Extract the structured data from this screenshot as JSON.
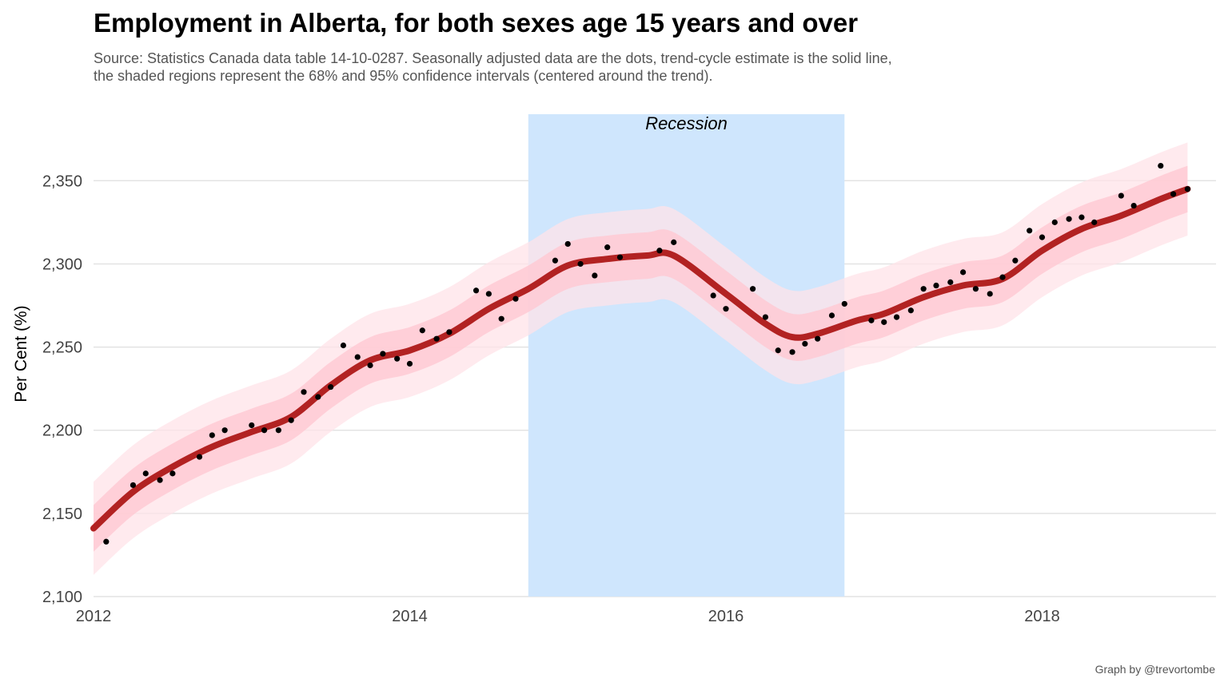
{
  "title": "Employment in Alberta, for both sexes age 15 years and over",
  "subtitle_line1": "Source: Statistics Canada data table 14-10-0287. Seasonally adjusted data are the dots, trend-cycle estimate is the solid line,",
  "subtitle_line2": "the shaded regions represent the 68% and 95% confidence intervals (centered around the trend).",
  "caption": "Graph by @trevortombe",
  "chart_data": {
    "type": "line",
    "ylabel": "Per Cent (%)",
    "xlabel": "",
    "xlim": [
      2012.0,
      2019.1
    ],
    "ylim": [
      2100,
      2390
    ],
    "x_ticks": [
      2012,
      2014,
      2016,
      2018
    ],
    "x_tick_labels": [
      "2012",
      "2014",
      "2016",
      "2018"
    ],
    "y_ticks": [
      2100,
      2150,
      2200,
      2250,
      2300,
      2350
    ],
    "y_tick_labels": [
      "2,100",
      "2,150",
      "2,200",
      "2,250",
      "2,300",
      "2,350"
    ],
    "grid": true,
    "annotation": {
      "text": "Recession",
      "x_start": 2014.75,
      "x_end": 2016.75
    },
    "colors": {
      "trend": "#b22222",
      "ci68": "#ffc8d2",
      "ci95": "#ffe3e8",
      "recession": "#cfe6fd",
      "dots": "#000000"
    },
    "ci68_halfwidth": 14,
    "ci95_halfwidth": 28,
    "trend": {
      "name": "trend-cycle estimate",
      "x": [
        2012.0,
        2012.25,
        2012.5,
        2012.75,
        2013.0,
        2013.25,
        2013.5,
        2013.75,
        2014.0,
        2014.25,
        2014.5,
        2014.75,
        2015.0,
        2015.25,
        2015.5,
        2015.67,
        2016.0,
        2016.25,
        2016.42,
        2016.58,
        2016.83,
        2017.0,
        2017.25,
        2017.5,
        2017.75,
        2018.0,
        2018.25,
        2018.5,
        2018.75,
        2018.92
      ],
      "y": [
        2141,
        2163,
        2178,
        2190,
        2199,
        2208,
        2227,
        2242,
        2248,
        2258,
        2273,
        2285,
        2299,
        2303,
        2305,
        2305,
        2282,
        2264,
        2256,
        2258,
        2266,
        2270,
        2280,
        2287,
        2291,
        2308,
        2321,
        2329,
        2339,
        2345
      ]
    },
    "observed": {
      "name": "seasonally adjusted data",
      "x": [
        2012.08,
        2012.25,
        2012.33,
        2012.42,
        2012.5,
        2012.67,
        2012.75,
        2012.83,
        2013.0,
        2013.08,
        2013.17,
        2013.25,
        2013.33,
        2013.42,
        2013.5,
        2013.58,
        2013.67,
        2013.75,
        2013.83,
        2013.92,
        2014.0,
        2014.08,
        2014.17,
        2014.25,
        2014.42,
        2014.5,
        2014.58,
        2014.67,
        2014.92,
        2015.0,
        2015.08,
        2015.17,
        2015.25,
        2015.33,
        2015.58,
        2015.67,
        2015.92,
        2016.0,
        2016.17,
        2016.25,
        2016.33,
        2016.42,
        2016.5,
        2016.58,
        2016.67,
        2016.75,
        2016.92,
        2017.0,
        2017.08,
        2017.17,
        2017.25,
        2017.33,
        2017.42,
        2017.5,
        2017.58,
        2017.67,
        2017.75,
        2017.83,
        2017.92,
        2018.0,
        2018.08,
        2018.17,
        2018.25,
        2018.33,
        2018.5,
        2018.58,
        2018.75,
        2018.83,
        2018.92
      ],
      "y": [
        2133,
        2167,
        2174,
        2170,
        2174,
        2184,
        2197,
        2200,
        2203,
        2200,
        2200,
        2206,
        2223,
        2220,
        2226,
        2251,
        2244,
        2239,
        2246,
        2243,
        2240,
        2260,
        2255,
        2259,
        2284,
        2282,
        2267,
        2279,
        2302,
        2312,
        2300,
        2293,
        2310,
        2304,
        2308,
        2313,
        2281,
        2273,
        2285,
        2268,
        2248,
        2247,
        2252,
        2255,
        2269,
        2276,
        2266,
        2265,
        2268,
        2272,
        2285,
        2287,
        2289,
        2295,
        2285,
        2282,
        2292,
        2302,
        2320,
        2316,
        2325,
        2327,
        2328,
        2325,
        2341,
        2335,
        2359,
        2342,
        2345
      ]
    }
  }
}
